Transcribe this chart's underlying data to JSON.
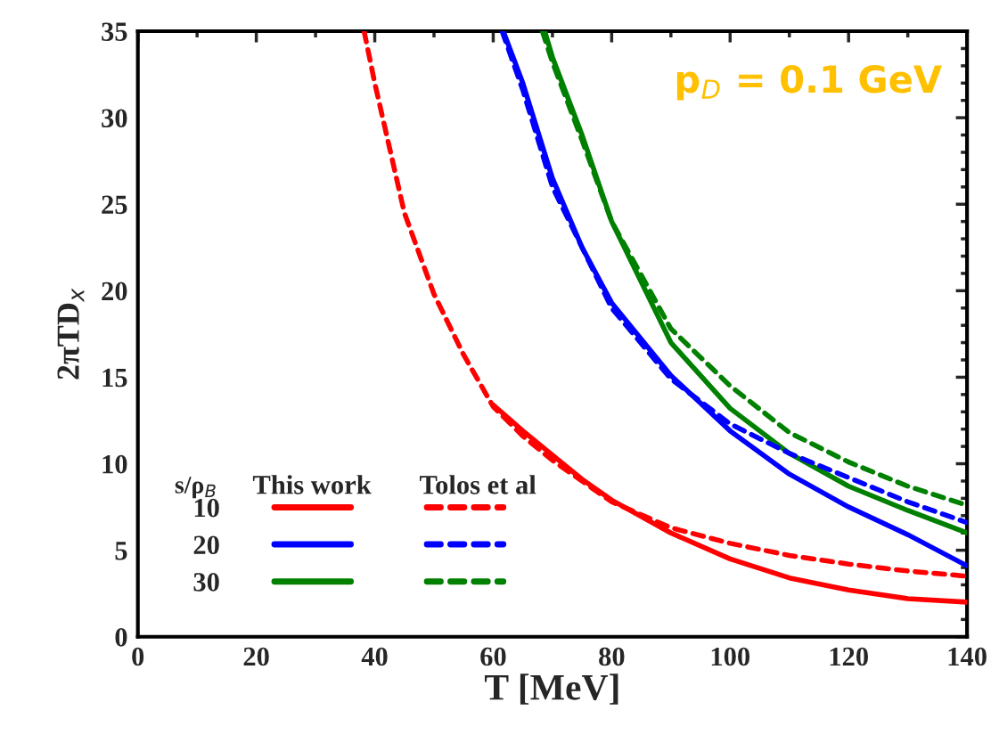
{
  "chart_data": {
    "type": "line",
    "xlabel": "T [MeV]",
    "ylabel": "2πTD$_{x}$",
    "legend_title": "s/ρ$_{B}$",
    "annotations": [
      "This work",
      "Tolos et al",
      "p$_{D}$ = 0.1 GeV"
    ],
    "xlim": [
      0,
      140
    ],
    "xticks": [
      0,
      20,
      40,
      60,
      80,
      100,
      120,
      140
    ],
    "ylim": [
      0,
      35
    ],
    "yticks": [
      0,
      5,
      10,
      15,
      20,
      25,
      30,
      35
    ],
    "grid": false,
    "legend": "bottom left",
    "marker": "none",
    "series": [
      {
        "name": "10",
        "color": "#ff0000",
        "line_style": "solid",
        "x": [
          60,
          65,
          70,
          75,
          80,
          90,
          100,
          110,
          120,
          130,
          140
        ],
        "values": [
          13.4,
          11.9,
          10.5,
          9.1,
          7.9,
          6.0,
          4.5,
          3.4,
          2.7,
          2.2,
          2.0
        ]
      },
      {
        "name": "20",
        "color": "#0000ff",
        "line_style": "solid",
        "x": [
          61.7,
          65,
          70,
          75,
          80,
          90,
          100,
          110,
          120,
          130,
          140
        ],
        "values": [
          35,
          32.0,
          26.5,
          22.5,
          19.3,
          15.1,
          11.9,
          9.4,
          7.5,
          5.9,
          4.1
        ]
      },
      {
        "name": "30",
        "color": "#008000",
        "line_style": "solid",
        "x": [
          68.7,
          70,
          75,
          80,
          90,
          100,
          110,
          120,
          130,
          140
        ],
        "values": [
          35,
          33.5,
          29.0,
          24.0,
          17.0,
          13.2,
          10.6,
          8.7,
          7.3,
          6.0
        ]
      },
      {
        "name": "10",
        "color": "#ff0000",
        "line_style": "dashed",
        "x": [
          38.2,
          40,
          45,
          50,
          55,
          60,
          65,
          70,
          80,
          90,
          100,
          110,
          120,
          130,
          140
        ],
        "values": [
          35,
          32.0,
          24.5,
          19.8,
          16.3,
          13.3,
          11.6,
          10.2,
          7.8,
          6.3,
          5.4,
          4.7,
          4.2,
          3.8,
          3.5
        ]
      },
      {
        "name": "20",
        "color": "#0000ff",
        "line_style": "dashed",
        "x": [
          61.5,
          65,
          70,
          80,
          90,
          100,
          110,
          120,
          130,
          140
        ],
        "values": [
          35,
          31.6,
          26.0,
          19.0,
          14.9,
          12.3,
          10.6,
          9.2,
          7.8,
          6.6
        ]
      },
      {
        "name": "30",
        "color": "#008000",
        "line_style": "dashed",
        "x": [
          68.3,
          70,
          75,
          80,
          90,
          100,
          110,
          120,
          130,
          140
        ],
        "values": [
          35,
          33.2,
          28.7,
          24.0,
          17.8,
          14.5,
          11.8,
          10.1,
          8.7,
          7.6
        ]
      }
    ]
  }
}
